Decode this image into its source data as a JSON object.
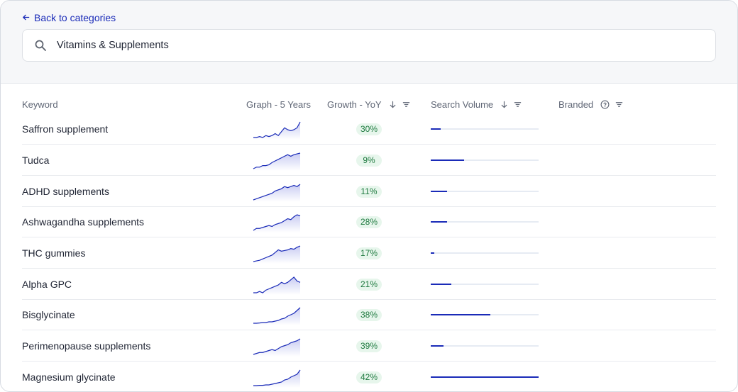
{
  "nav": {
    "back_label": "Back to categories"
  },
  "search": {
    "value": "Vitamins & Supplements"
  },
  "columns": {
    "keyword": "Keyword",
    "graph": "Graph - 5 Years",
    "growth": "Growth - YoY",
    "volume": "Search Volume",
    "branded": "Branded"
  },
  "colors": {
    "accent": "#1a2bb8",
    "growth_badge_bg": "#e7f6ec",
    "growth_badge_text": "#1e7a3f"
  },
  "rows": [
    {
      "keyword": "Saffron supplement",
      "growth": "30%",
      "volume_fraction": 0.09,
      "trend": [
        2,
        2,
        2.5,
        2,
        3,
        2.5,
        3,
        4,
        3,
        5,
        7,
        6,
        5.5,
        6,
        7,
        10
      ]
    },
    {
      "keyword": "Tudca",
      "growth": "9%",
      "volume_fraction": 0.31,
      "trend": [
        1,
        2,
        2,
        3,
        3,
        3.5,
        5,
        6,
        7,
        8,
        9,
        10,
        9,
        10,
        10.5,
        11
      ]
    },
    {
      "keyword": "ADHD supplements",
      "growth": "11%",
      "volume_fraction": 0.15,
      "trend": [
        1,
        1.5,
        2,
        2.5,
        3,
        3.5,
        4,
        5,
        5.5,
        6,
        7,
        6.5,
        7,
        7.5,
        7,
        8
      ]
    },
    {
      "keyword": "Ashwagandha supplements",
      "growth": "28%",
      "volume_fraction": 0.15,
      "trend": [
        1,
        2,
        2,
        2.5,
        3,
        3.5,
        3,
        4,
        4.5,
        5,
        6,
        7,
        6.5,
        8,
        9,
        8.5
      ]
    },
    {
      "keyword": "THC gummies",
      "growth": "17%",
      "volume_fraction": 0.03,
      "trend": [
        1,
        1.5,
        2,
        3,
        4,
        5,
        6,
        8,
        10,
        9,
        9.5,
        10,
        11,
        10.5,
        12,
        13
      ]
    },
    {
      "keyword": "Alpha GPC",
      "growth": "21%",
      "volume_fraction": 0.19,
      "trend": [
        1,
        1,
        1.5,
        1,
        2,
        2.5,
        3,
        3.5,
        4,
        5,
        4.5,
        5,
        6,
        7,
        5.5,
        5
      ]
    },
    {
      "keyword": "Bisglycinate",
      "growth": "38%",
      "volume_fraction": 0.55,
      "trend": [
        1,
        1,
        1.2,
        1.5,
        1.5,
        2,
        2,
        2.5,
        3,
        4,
        4.5,
        6,
        7,
        8,
        10,
        12
      ]
    },
    {
      "keyword": "Perimenopause supplements",
      "growth": "39%",
      "volume_fraction": 0.12,
      "trend": [
        1,
        1.5,
        2,
        2,
        2.5,
        3,
        3.5,
        3,
        4,
        5,
        5.5,
        6,
        7,
        7.5,
        8,
        9
      ]
    },
    {
      "keyword": "Magnesium glycinate",
      "growth": "42%",
      "volume_fraction": 1.0,
      "trend": [
        1,
        1,
        1.2,
        1.2,
        1.5,
        1.5,
        2,
        2.5,
        3,
        3.5,
        5,
        5.5,
        7,
        8,
        9,
        12
      ]
    }
  ]
}
